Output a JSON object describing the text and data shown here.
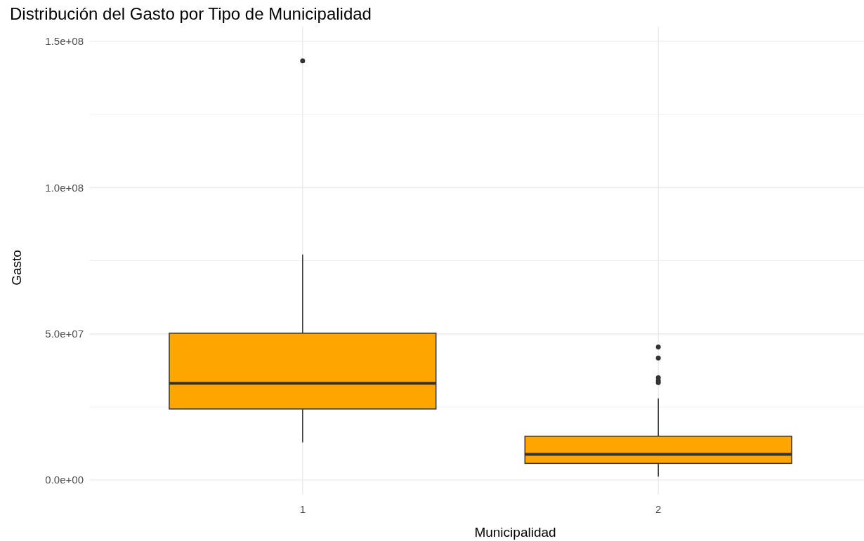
{
  "chart_data": {
    "type": "box",
    "title": "Distribución del Gasto por Tipo de Municipalidad",
    "xlabel": "Municipalidad",
    "ylabel": "Gasto",
    "categories": [
      "1",
      "2"
    ],
    "boxes": [
      {
        "low": 12900000,
        "q1": 24300000,
        "median": 33100000,
        "q3": 50200000,
        "high": 77100000,
        "outliers": [
          143300000
        ]
      },
      {
        "low": 1200000,
        "q1": 5700000,
        "median": 8800000,
        "q3": 15000000,
        "high": 27900000,
        "outliers": [
          45500000,
          41700000,
          35000000,
          34000000,
          33300000
        ]
      }
    ],
    "color": "#ffa500",
    "ylim": [
      -5000000,
      155000000
    ],
    "yticks": [
      {
        "value": 0,
        "label": "0.0e+00"
      },
      {
        "value": 25000000,
        "label": null
      },
      {
        "value": 50000000,
        "label": "5.0e+07"
      },
      {
        "value": 75000000,
        "label": null
      },
      {
        "value": 100000000,
        "label": "1.0e+08"
      },
      {
        "value": 125000000,
        "label": null
      },
      {
        "value": 150000000,
        "label": "1.5e+08"
      }
    ],
    "grid": true
  }
}
